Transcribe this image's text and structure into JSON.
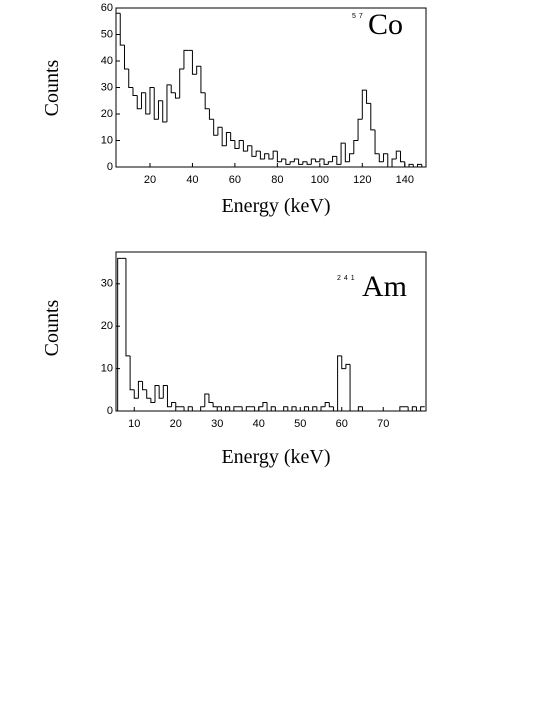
{
  "chart_data": [
    {
      "type": "histogram",
      "title": "Co",
      "title_superscript": "57",
      "x_label": "Energy (keV)",
      "y_label": "Counts",
      "color": "#000000",
      "bins": [
        4,
        6,
        8,
        10,
        12,
        14,
        16,
        18,
        20,
        22,
        24,
        26,
        28,
        30,
        32,
        34,
        36,
        38,
        40,
        42,
        44,
        46,
        48,
        50,
        52,
        54,
        56,
        58,
        60,
        62,
        64,
        66,
        68,
        70,
        72,
        74,
        76,
        78,
        80,
        82,
        84,
        86,
        88,
        90,
        92,
        94,
        96,
        98,
        100,
        102,
        104,
        106,
        108,
        110,
        112,
        114,
        116,
        118,
        120,
        122,
        124,
        126,
        128,
        130,
        132,
        134,
        136,
        138,
        140,
        142,
        144,
        146,
        148,
        150
      ],
      "values": [
        58,
        46,
        37,
        30,
        27,
        22,
        28,
        20,
        30,
        18,
        25,
        17,
        31,
        28,
        26,
        37,
        44,
        44,
        35,
        38,
        28,
        22,
        18,
        12,
        15,
        8,
        13,
        10,
        7,
        10,
        6,
        8,
        4,
        6,
        3,
        5,
        3,
        6,
        2,
        3,
        1,
        2,
        3,
        1,
        2,
        1,
        3,
        2,
        3,
        1,
        2,
        4,
        1,
        9,
        2,
        5,
        10,
        18,
        29,
        24,
        14,
        5,
        2,
        5,
        0,
        3,
        6,
        2,
        0,
        1,
        0,
        1,
        0
      ],
      "xlim": [
        4,
        150
      ],
      "ylim": [
        0,
        60
      ],
      "xticks": [
        20,
        40,
        60,
        80,
        100,
        120,
        140
      ],
      "yticks": [
        0,
        10,
        20,
        30,
        40,
        50,
        60
      ]
    },
    {
      "type": "histogram",
      "title": "Am",
      "title_superscript": "241",
      "x_label": "Energy (keV)",
      "y_label": "Counts",
      "color": "#000000",
      "bins": [
        6,
        7,
        8,
        9,
        10,
        11,
        12,
        13,
        14,
        15,
        16,
        17,
        18,
        19,
        20,
        21,
        22,
        23,
        24,
        25,
        26,
        27,
        28,
        29,
        30,
        31,
        32,
        33,
        34,
        35,
        36,
        37,
        38,
        39,
        40,
        41,
        42,
        43,
        44,
        45,
        46,
        47,
        48,
        49,
        50,
        51,
        52,
        53,
        54,
        55,
        56,
        57,
        58,
        59,
        60,
        61,
        62,
        63,
        64,
        65,
        66,
        67,
        68,
        69,
        70,
        71,
        72,
        73,
        74,
        75,
        76,
        77,
        78,
        79,
        80
      ],
      "values": [
        36,
        36,
        13,
        5,
        3,
        7,
        5,
        3,
        2,
        6,
        3,
        6,
        1,
        2,
        1,
        1,
        0,
        1,
        0,
        0,
        1,
        4,
        2,
        1,
        1,
        0,
        1,
        0,
        1,
        1,
        0,
        1,
        1,
        0,
        1,
        2,
        0,
        1,
        0,
        0,
        1,
        0,
        1,
        0,
        0,
        1,
        0,
        1,
        0,
        1,
        2,
        1,
        0,
        13,
        10,
        11,
        0,
        0,
        1,
        0,
        0,
        0,
        0,
        0,
        0,
        0,
        0,
        0,
        1,
        1,
        0,
        1,
        0,
        1
      ],
      "xlim": [
        5.6,
        80.3
      ],
      "ylim": [
        0,
        37.5
      ],
      "xticks": [
        10,
        20,
        30,
        40,
        50,
        60,
        70
      ],
      "yticks": [
        0,
        10,
        20,
        30
      ]
    }
  ]
}
